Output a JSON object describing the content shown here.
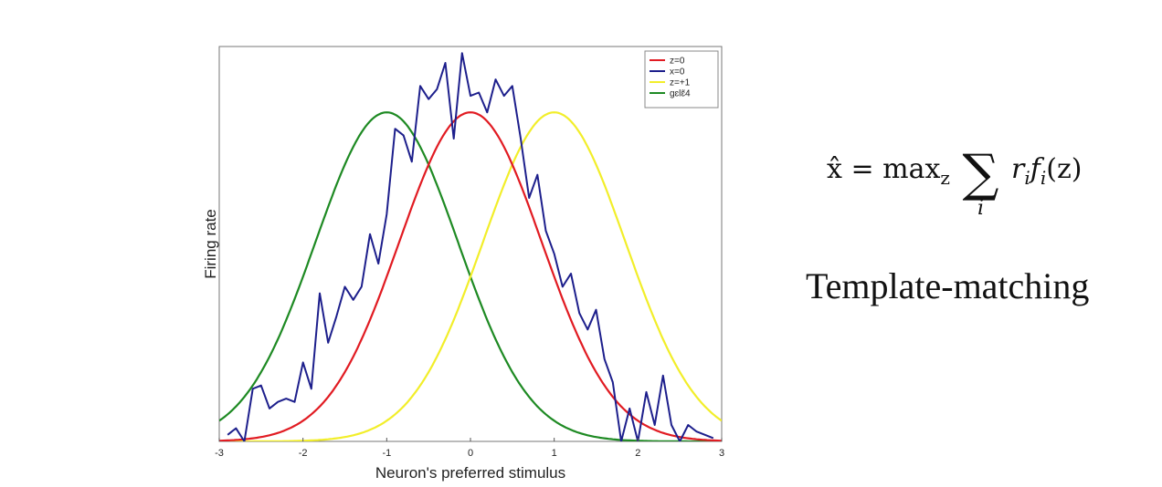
{
  "chart_data": {
    "type": "line",
    "title": "",
    "xlabel": "Neuron's preferred stimulus",
    "ylabel": "Firing rate",
    "xlim": [
      -3,
      3
    ],
    "ylim": [
      0,
      1.2
    ],
    "xticks": [
      "-3",
      "-2",
      "-1",
      "0",
      "1",
      "2",
      "3"
    ],
    "grid": false,
    "legend_position": "top-right",
    "series": [
      {
        "name": "z=0",
        "color": "#e11b22",
        "kind": "gaussian",
        "mean": 0,
        "sigma": 0.85,
        "amplitude": 1.0
      },
      {
        "name": "x=0",
        "color": "#1d1f8c",
        "kind": "samples",
        "x": [
          -2.9,
          -2.8,
          -2.7,
          -2.6,
          -2.5,
          -2.4,
          -2.3,
          -2.2,
          -2.1,
          -2.0,
          -1.9,
          -1.8,
          -1.7,
          -1.6,
          -1.5,
          -1.4,
          -1.3,
          -1.2,
          -1.1,
          -1.0,
          -0.9,
          -0.8,
          -0.7,
          -0.6,
          -0.5,
          -0.4,
          -0.3,
          -0.2,
          -0.1,
          0.0,
          0.1,
          0.2,
          0.3,
          0.4,
          0.5,
          0.6,
          0.7,
          0.8,
          0.9,
          1.0,
          1.1,
          1.2,
          1.3,
          1.4,
          1.5,
          1.6,
          1.7,
          1.8,
          1.9,
          2.0,
          2.1,
          2.2,
          2.3,
          2.4,
          2.5,
          2.6,
          2.7,
          2.8,
          2.9
        ],
        "y": [
          0.02,
          0.04,
          0.0,
          0.16,
          0.17,
          0.1,
          0.12,
          0.13,
          0.12,
          0.24,
          0.16,
          0.45,
          0.3,
          0.38,
          0.47,
          0.43,
          0.47,
          0.63,
          0.54,
          0.69,
          0.95,
          0.93,
          0.85,
          1.08,
          1.04,
          1.07,
          1.15,
          0.92,
          1.18,
          1.05,
          1.06,
          1.0,
          1.1,
          1.05,
          1.08,
          0.92,
          0.74,
          0.81,
          0.64,
          0.57,
          0.47,
          0.51,
          0.39,
          0.34,
          0.4,
          0.25,
          0.18,
          0.0,
          0.1,
          0.0,
          0.15,
          0.05,
          0.2,
          0.05,
          0.0,
          0.05,
          0.03,
          0.02,
          0.01
        ]
      },
      {
        "name": "z=+1",
        "color": "#f2ee2a",
        "kind": "gaussian",
        "mean": 1,
        "sigma": 0.85,
        "amplitude": 1.0
      },
      {
        "name": "ɡɛlɛ̃4",
        "color": "#1e8a23",
        "kind": "gaussian",
        "mean": -1,
        "sigma": 0.85,
        "amplitude": 1.0
      }
    ]
  },
  "formula": {
    "lhs": "x̂ = max",
    "sub_z": "z",
    "sum": "∑",
    "sum_index": "i",
    "r": "r",
    "sub_i": "i",
    "f": "f",
    "sub_i2": "i",
    "arg": "(z)"
  },
  "caption": "Template-matching"
}
